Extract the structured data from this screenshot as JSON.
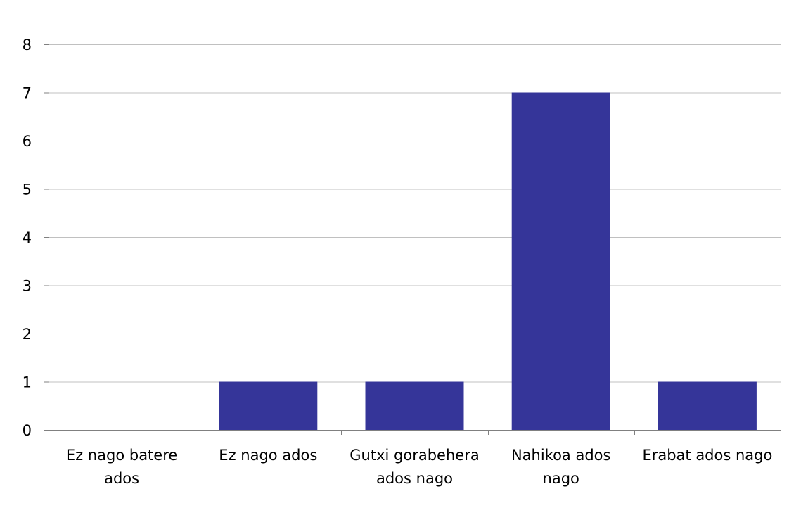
{
  "chart_data": {
    "type": "bar",
    "title": "",
    "xlabel": "",
    "ylabel": "",
    "categories": [
      [
        "Ez nago batere",
        "ados"
      ],
      [
        "Ez nago ados"
      ],
      [
        "Gutxi gorabehera",
        "ados nago"
      ],
      [
        "Nahikoa ados",
        "nago"
      ],
      [
        "Erabat ados nago"
      ]
    ],
    "values": [
      0,
      1,
      1,
      7,
      1
    ],
    "ylim": [
      0,
      8
    ],
    "yticks": [
      "0",
      "1",
      "2",
      "3",
      "4",
      "5",
      "6",
      "7",
      "8"
    ],
    "grid": true,
    "legend": "none",
    "colors": {
      "bar": "#353599",
      "grid": "#c0c0c0",
      "axis": "#808080"
    }
  }
}
